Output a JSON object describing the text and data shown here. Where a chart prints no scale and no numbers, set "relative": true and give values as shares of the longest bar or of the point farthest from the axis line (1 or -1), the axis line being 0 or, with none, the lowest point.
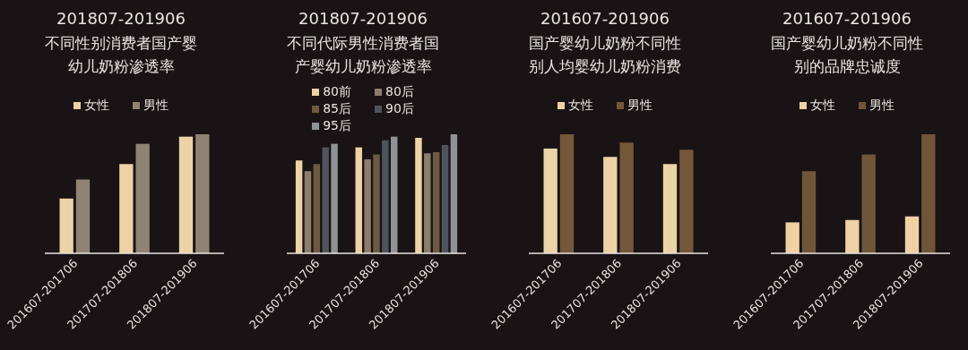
{
  "chart_data": [
    {
      "type": "bar",
      "title": "201807-201906",
      "subtitle": "不同性别消费者国产婴幼儿奶粉渗透率",
      "categories": [
        "201607-201706",
        "201707-201806",
        "201807-201906"
      ],
      "relative": true,
      "legend": "top",
      "series": [
        {
          "name": "女性",
          "color": "#ecd3a5",
          "values": [
            0.46,
            0.75,
            0.98
          ]
        },
        {
          "name": "男性",
          "color": "#8f8474",
          "values": [
            0.62,
            0.92,
            1
          ]
        }
      ]
    },
    {
      "type": "bar",
      "title": "201807-201906",
      "subtitle": "不同代际男性消费者国产婴幼儿奶粉渗透率",
      "categories": [
        "201607-201706",
        "201707-201806",
        "201807-201906"
      ],
      "relative": true,
      "legend": "top",
      "series": [
        {
          "name": "80前",
          "color": "#ecd3a5",
          "values": [
            0.78,
            0.89,
            0.97
          ]
        },
        {
          "name": "80后",
          "color": "#8c7d6c",
          "values": [
            0.69,
            0.79,
            0.84
          ]
        },
        {
          "name": "85后",
          "color": "#6e5a40",
          "values": [
            0.75,
            0.83,
            0.85
          ]
        },
        {
          "name": "90后",
          "color": "#4f545c",
          "values": [
            0.89,
            0.95,
            0.91
          ]
        },
        {
          "name": "95后",
          "color": "#8f9398",
          "values": [
            0.92,
            0.98,
            1
          ]
        }
      ]
    },
    {
      "type": "bar",
      "title": "201607-201906",
      "subtitle": "国产婴幼儿奶粉不同性别人均婴幼儿奶粉消费",
      "categories": [
        "201607-201706",
        "201707-201806",
        "201807-201906"
      ],
      "relative": true,
      "legend": "top",
      "series": [
        {
          "name": "女性",
          "color": "#ecd3a5",
          "values": [
            0.88,
            0.81,
            0.75
          ]
        },
        {
          "name": "男性",
          "color": "#74583a",
          "values": [
            1,
            0.93,
            0.87
          ]
        }
      ]
    },
    {
      "type": "bar",
      "title": "201607-201906",
      "subtitle": "国产婴幼儿奶粉不同性别的品牌忠诚度",
      "categories": [
        "201607-201706",
        "201707-201806",
        "201807-201906"
      ],
      "relative": true,
      "legend": "top",
      "series": [
        {
          "name": "女性",
          "color": "#f0d0a5",
          "values": [
            0.26,
            0.28,
            0.31
          ]
        },
        {
          "name": "男性",
          "color": "#6f5638",
          "values": [
            0.69,
            0.83,
            1
          ]
        }
      ]
    }
  ]
}
